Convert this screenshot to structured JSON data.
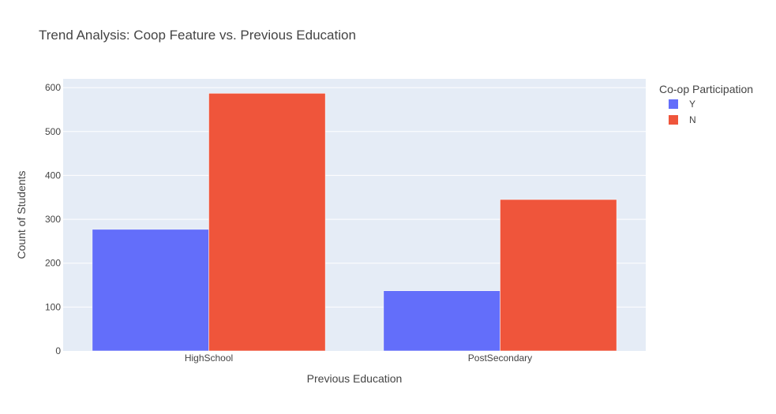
{
  "chart_data": {
    "type": "bar",
    "title": "Trend Analysis: Coop Feature vs. Previous Education",
    "xlabel": "Previous Education",
    "ylabel": "Count of Students",
    "categories": [
      "HighSchool",
      "PostSecondary"
    ],
    "series": [
      {
        "name": "Y",
        "values": [
          277,
          137
        ],
        "color": "#636efa"
      },
      {
        "name": "N",
        "values": [
          587,
          345
        ],
        "color": "#ef553b"
      }
    ],
    "ylim": [
      0,
      620
    ],
    "yticks": [
      0,
      100,
      200,
      300,
      400,
      500,
      600
    ],
    "grid": true,
    "legend": {
      "title": "Co-op Participation",
      "position": "top-right"
    },
    "colors": {
      "plot_background": "#e5ecf6",
      "gridline": "#ffffff",
      "text": "#444444",
      "title_text": "#444444"
    }
  }
}
